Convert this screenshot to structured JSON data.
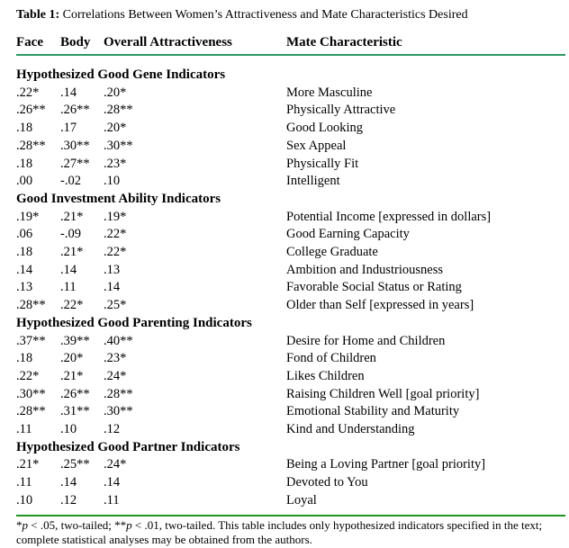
{
  "title": {
    "label": "Table 1:",
    "caption": "Correlations Between Women’s Attractiveness and Mate Characteristics Desired"
  },
  "columns": [
    "Face",
    "Body",
    "Overall Attractiveness",
    "Mate Characteristic"
  ],
  "sections": [
    {
      "header": "Hypothesized Good Gene Indicators",
      "rows": [
        {
          "face": ".22*",
          "body": ".14",
          "overall": ".20*",
          "characteristic": "More Masculine"
        },
        {
          "face": ".26**",
          "body": ".26**",
          "overall": ".28**",
          "characteristic": "Physically Attractive"
        },
        {
          "face": ".18",
          "body": ".17",
          "overall": ".20*",
          "characteristic": "Good Looking"
        },
        {
          "face": ".28**",
          "body": ".30**",
          "overall": ".30**",
          "characteristic": "Sex Appeal"
        },
        {
          "face": ".18",
          "body": ".27**",
          "overall": ".23*",
          "characteristic": "Physically Fit"
        },
        {
          "face": ".00",
          "body": "-.02",
          "overall": ".10",
          "characteristic": "Intelligent"
        }
      ]
    },
    {
      "header": "Good Investment Ability Indicators",
      "rows": [
        {
          "face": ".19*",
          "body": ".21*",
          "overall": ".19*",
          "characteristic": "Potential Income [expressed in dollars]"
        },
        {
          "face": ".06",
          "body": "-.09",
          "overall": ".22*",
          "characteristic": "Good Earning Capacity"
        },
        {
          "face": ".18",
          "body": ".21*",
          "overall": ".22*",
          "characteristic": "College Graduate"
        },
        {
          "face": ".14",
          "body": ".14",
          "overall": ".13",
          "characteristic": "Ambition and Industriousness"
        },
        {
          "face": ".13",
          "body": ".11",
          "overall": ".14",
          "characteristic": "Favorable Social Status or Rating"
        },
        {
          "face": ".28**",
          "body": ".22*",
          "overall": ".25*",
          "characteristic": "Older than Self [expressed in years]"
        }
      ]
    },
    {
      "header": "Hypothesized Good Parenting Indicators",
      "rows": [
        {
          "face": ".37**",
          "body": ".39**",
          "overall": ".40**",
          "characteristic": "Desire for Home and Children"
        },
        {
          "face": ".18",
          "body": ".20*",
          "overall": ".23*",
          "characteristic": "Fond of Children"
        },
        {
          "face": ".22*",
          "body": ".21*",
          "overall": ".24*",
          "characteristic": "Likes Children"
        },
        {
          "face": ".30**",
          "body": ".26**",
          "overall": ".28**",
          "characteristic": "Raising Children Well [goal priority]"
        },
        {
          "face": ".28**",
          "body": ".31**",
          "overall": ".30**",
          "characteristic": "Emotional Stability and Maturity"
        },
        {
          "face": ".11",
          "body": ".10",
          "overall": ".12",
          "characteristic": "Kind and Understanding"
        }
      ]
    },
    {
      "header": "Hypothesized Good Partner Indicators",
      "rows": [
        {
          "face": ".21*",
          "body": ".25**",
          "overall": ".24*",
          "characteristic": "Being a Loving Partner [goal priority]"
        },
        {
          "face": ".11",
          "body": ".14",
          "overall": ".14",
          "characteristic": "Devoted to You"
        },
        {
          "face": ".10",
          "body": ".12",
          "overall": ".11",
          "characteristic": "Loyal"
        }
      ]
    }
  ],
  "footnote": {
    "seg1": "*",
    "p1": "p",
    "seg2": " < .05, two-tailed; **",
    "p2": "p",
    "seg3": " < .01, two-tailed. This table includes only hypothesized indicators specified in the text; complete statistical analyses may be obtained from the authors."
  },
  "colors": {
    "header_rule": "#2e9762",
    "footnote_rule": "#229422",
    "text": "#000000",
    "background": "#ffffff"
  }
}
